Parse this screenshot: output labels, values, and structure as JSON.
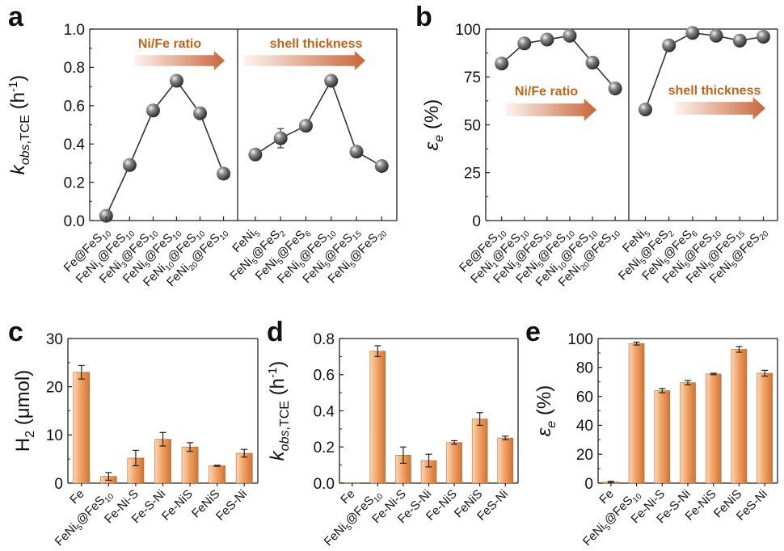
{
  "colors": {
    "axis": "#222222",
    "line": "#333333",
    "bar_light": "#fad7b4",
    "bar_mid": "#f2a266",
    "bar_dark": "#cf7432",
    "arrow_start": "#fbe7dd",
    "arrow_end": "#c8653a",
    "annotation": "#c06418"
  },
  "chart_data": [
    {
      "panel_label": "a",
      "type": "line",
      "ylabel": {
        "k": "k",
        "sub": "obs",
        "sub2": ",TCE",
        "rest": " (h",
        "sup": "-1",
        "close": ")"
      },
      "ylim": [
        0,
        1.0
      ],
      "yticks": [
        "0.0",
        "0.2",
        "0.4",
        "0.6",
        "0.8",
        "1.0"
      ],
      "groups": [
        {
          "annotation": "Ni/Fe ratio",
          "categories": [
            {
              "text": "Fe@FeS",
              "sub": "10"
            },
            {
              "text": "FeNi",
              "sub": "1",
              "text2": "@FeS",
              "sub2": "10"
            },
            {
              "text": "FeNi",
              "sub": "3",
              "text2": "@FeS",
              "sub2": "10"
            },
            {
              "text": "FeNi",
              "sub": "5",
              "text2": "@FeS",
              "sub2": "10"
            },
            {
              "text": "FeNi",
              "sub": "10",
              "text2": "@FeS",
              "sub2": "10"
            },
            {
              "text": "FeNi",
              "sub": "20",
              "text2": "@FeS",
              "sub2": "10"
            }
          ],
          "values": [
            0.025,
            0.29,
            0.575,
            0.73,
            0.56,
            0.245
          ],
          "errors": [
            0.01,
            0.01,
            0.03,
            0.01,
            0.01,
            0.01
          ]
        },
        {
          "annotation": "shell thickness",
          "categories": [
            {
              "text": "FeNi",
              "sub": "5"
            },
            {
              "text": "FeNi",
              "sub": "5",
              "text2": "@FeS",
              "sub2": "2"
            },
            {
              "text": "FeNi",
              "sub": "5",
              "text2": "@FeS",
              "sub2": "6"
            },
            {
              "text": "FeNi",
              "sub": "5",
              "text2": "@FeS",
              "sub2": "10"
            },
            {
              "text": "FeNi",
              "sub": "5",
              "text2": "@FeS",
              "sub2": "15"
            },
            {
              "text": "FeNi",
              "sub": "5",
              "text2": "@FeS",
              "sub2": "20"
            }
          ],
          "values": [
            0.345,
            0.43,
            0.495,
            0.73,
            0.36,
            0.285
          ],
          "errors": [
            0.01,
            0.05,
            0.01,
            0.01,
            0.01,
            0.01
          ]
        }
      ]
    },
    {
      "panel_label": "b",
      "type": "line",
      "ylabel": {
        "k": "ε",
        "sub": "e",
        "rest": " (%)"
      },
      "ylim": [
        0,
        100
      ],
      "yticks": [
        "0",
        "25",
        "50",
        "75",
        "100"
      ],
      "groups": [
        {
          "annotation": "Ni/Fe ratio",
          "categories": [
            {
              "text": "Fe@FeS",
              "sub": "10"
            },
            {
              "text": "FeNi",
              "sub": "1",
              "text2": "@FeS",
              "sub2": "10"
            },
            {
              "text": "FeNi",
              "sub": "3",
              "text2": "@FeS",
              "sub2": "10"
            },
            {
              "text": "FeNi",
              "sub": "5",
              "text2": "@FeS",
              "sub2": "10"
            },
            {
              "text": "FeNi",
              "sub": "10",
              "text2": "@FeS",
              "sub2": "10"
            },
            {
              "text": "FeNi",
              "sub": "20",
              "text2": "@FeS",
              "sub2": "10"
            }
          ],
          "values": [
            82,
            92.5,
            94.5,
            96.5,
            82.5,
            69
          ],
          "errors": [
            0,
            0,
            0,
            0,
            0,
            0
          ]
        },
        {
          "annotation": "shell thickness",
          "categories": [
            {
              "text": "FeNi",
              "sub": "5"
            },
            {
              "text": "FeNi",
              "sub": "5",
              "text2": "@FeS",
              "sub2": "2"
            },
            {
              "text": "FeNi",
              "sub": "5",
              "text2": "@FeS",
              "sub2": "6"
            },
            {
              "text": "FeNi",
              "sub": "5",
              "text2": "@FeS",
              "sub2": "10"
            },
            {
              "text": "FeNi",
              "sub": "5",
              "text2": "@FeS",
              "sub2": "15"
            },
            {
              "text": "FeNi",
              "sub": "5",
              "text2": "@FeS",
              "sub2": "20"
            }
          ],
          "values": [
            58,
            91.5,
            98,
            96.5,
            94,
            96
          ],
          "errors": [
            0,
            0,
            0,
            0,
            0,
            0
          ]
        }
      ]
    },
    {
      "panel_label": "c",
      "type": "bar",
      "ylabel": {
        "k": "H",
        "sub": "2",
        "rest": " (μmol)"
      },
      "ylim": [
        0,
        30
      ],
      "yticks": [
        "0",
        "10",
        "20",
        "30"
      ],
      "categories": [
        {
          "text": "Fe"
        },
        {
          "text": "FeNi",
          "sub": "5",
          "text2": "@FeS",
          "sub2": "10"
        },
        {
          "text": "Fe-Ni-S"
        },
        {
          "text": "Fe-S-Ni"
        },
        {
          "text": "Fe-NiS"
        },
        {
          "text": "FeNiS"
        },
        {
          "text": "FeS-Ni"
        }
      ],
      "values": [
        23,
        1.4,
        5.2,
        9.1,
        7.5,
        3.6,
        6.2
      ],
      "errors": [
        1.4,
        0.8,
        1.6,
        1.4,
        0.9,
        0.1,
        0.8
      ]
    },
    {
      "panel_label": "d",
      "type": "bar",
      "ylabel": {
        "k": "k",
        "sub": "obs",
        "sub2": ",TCE",
        "rest": " (h",
        "sup": "-1",
        "close": ")"
      },
      "ylim": [
        0,
        0.8
      ],
      "yticks": [
        "0.0",
        "0.2",
        "0.4",
        "0.6",
        "0.8"
      ],
      "categories": [
        {
          "text": "Fe"
        },
        {
          "text": "FeNi",
          "sub": "5",
          "text2": "@FeS",
          "sub2": "10"
        },
        {
          "text": "Fe-Ni-S"
        },
        {
          "text": "Fe-S-Ni"
        },
        {
          "text": "Fe-NiS"
        },
        {
          "text": "FeNiS"
        },
        {
          "text": "FeS-Ni"
        }
      ],
      "values": [
        0.0,
        0.73,
        0.155,
        0.125,
        0.225,
        0.355,
        0.25
      ],
      "errors": [
        0.0,
        0.03,
        0.045,
        0.035,
        0.01,
        0.035,
        0.01
      ]
    },
    {
      "panel_label": "e",
      "type": "bar",
      "ylabel": {
        "k": "ε",
        "sub": "e",
        "rest": " (%)"
      },
      "ylim": [
        0,
        100
      ],
      "yticks": [
        "0",
        "20",
        "40",
        "60",
        "80",
        "100"
      ],
      "categories": [
        {
          "text": "Fe"
        },
        {
          "text": "FeNi",
          "sub": "5",
          "text2": "@FeS",
          "sub2": "10"
        },
        {
          "text": "Fe-Ni-S"
        },
        {
          "text": "Fe-S-Ni"
        },
        {
          "text": "Fe-NiS"
        },
        {
          "text": "FeNiS"
        },
        {
          "text": "FeS-Ni"
        }
      ],
      "values": [
        0.8,
        96.5,
        64,
        69.5,
        75.5,
        92.5,
        76
      ],
      "errors": [
        0.5,
        1,
        1.5,
        1.5,
        0.5,
        2,
        2
      ]
    }
  ]
}
